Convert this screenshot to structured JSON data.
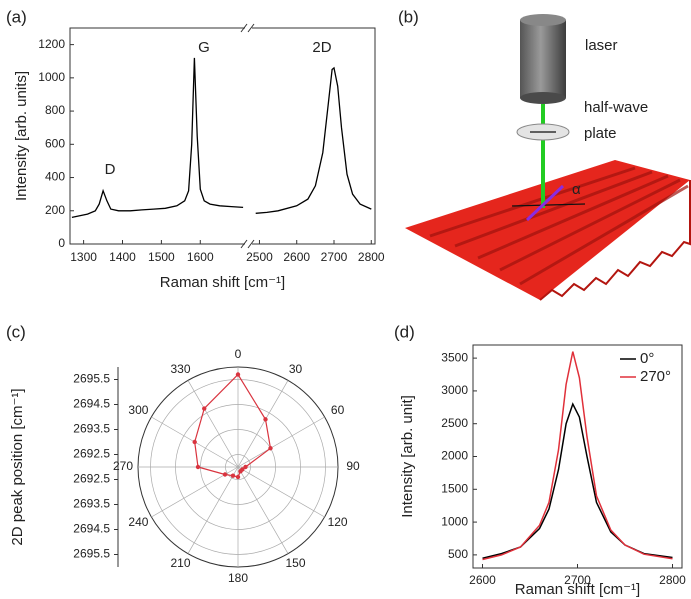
{
  "chart_data": [
    {
      "type": "broken-line",
      "label": "(a)",
      "ylabel": "Intensity [arb. units]",
      "xlabel": "Raman shift [cm⁻¹]",
      "color": "#000000",
      "ylim": [
        0,
        1300
      ],
      "yticks": [
        0,
        200,
        400,
        600,
        800,
        1000,
        1200
      ],
      "xticks": [
        1300,
        1400,
        1500,
        1600,
        2500,
        2600,
        2700,
        2800
      ],
      "segments": [
        {
          "xlim": [
            1265,
            1715
          ],
          "x": [
            1270,
            1290,
            1310,
            1330,
            1340,
            1350,
            1360,
            1370,
            1390,
            1420,
            1450,
            1480,
            1510,
            1540,
            1560,
            1570,
            1578,
            1585,
            1592,
            1600,
            1610,
            1625,
            1650,
            1680,
            1710
          ],
          "values": [
            160,
            170,
            180,
            200,
            240,
            320,
            260,
            210,
            200,
            200,
            205,
            210,
            215,
            230,
            260,
            320,
            600,
            1120,
            650,
            330,
            260,
            240,
            230,
            225,
            220
          ]
        },
        {
          "xlim": [
            2480,
            2810
          ],
          "x": [
            2490,
            2520,
            2550,
            2600,
            2630,
            2650,
            2670,
            2685,
            2695,
            2700,
            2710,
            2720,
            2735,
            2750,
            2770,
            2800
          ],
          "values": [
            185,
            190,
            200,
            230,
            270,
            350,
            550,
            850,
            1050,
            1060,
            950,
            700,
            420,
            300,
            240,
            210
          ]
        }
      ],
      "annotations": [
        "D",
        "G",
        "2D"
      ]
    },
    {
      "type": "polar",
      "label": "(c)",
      "rlabel": "2D peak position [cm⁻¹]",
      "color": "#d9343f",
      "rlim": [
        2692,
        2696
      ],
      "rticks": [
        2692.5,
        2693.5,
        2694.5,
        2695.5
      ],
      "thetaticks": [
        0,
        30,
        60,
        90,
        120,
        150,
        180,
        210,
        240,
        270,
        300,
        330
      ],
      "theta": [
        0,
        30,
        60,
        90,
        120,
        150,
        180,
        210,
        240,
        270,
        300,
        330
      ],
      "values": [
        2695.7,
        2694.2,
        2693.5,
        2692.3,
        2692.2,
        2692.2,
        2692.4,
        2692.4,
        2692.6,
        2693.6,
        2694.0,
        2694.7
      ]
    },
    {
      "type": "line",
      "label": "(d)",
      "ylabel": "Intensity [arb. unit]",
      "xlabel": "Raman shift [cm⁻¹]",
      "xlim": [
        2590,
        2810
      ],
      "xticks": [
        2600,
        2700,
        2800
      ],
      "ylim": [
        300,
        3700
      ],
      "yticks": [
        500,
        1000,
        1500,
        2000,
        2500,
        3000,
        3500
      ],
      "legend": "upper right",
      "x": [
        2600,
        2620,
        2640,
        2660,
        2670,
        2680,
        2688,
        2695,
        2702,
        2710,
        2720,
        2735,
        2750,
        2770,
        2800
      ],
      "series": [
        {
          "name": "0°",
          "color": "#000000",
          "values": [
            450,
            520,
            620,
            900,
            1200,
            1800,
            2500,
            2800,
            2600,
            2000,
            1300,
            850,
            650,
            520,
            460
          ]
        },
        {
          "name": "270°",
          "color": "#e0303a",
          "values": [
            430,
            500,
            620,
            950,
            1300,
            2100,
            3100,
            3600,
            3200,
            2300,
            1400,
            880,
            650,
            510,
            440
          ]
        }
      ]
    }
  ],
  "diagram": {
    "label": "(b)",
    "laser": "laser",
    "waveplate": [
      "half-wave",
      "plate"
    ],
    "angle": "α"
  }
}
